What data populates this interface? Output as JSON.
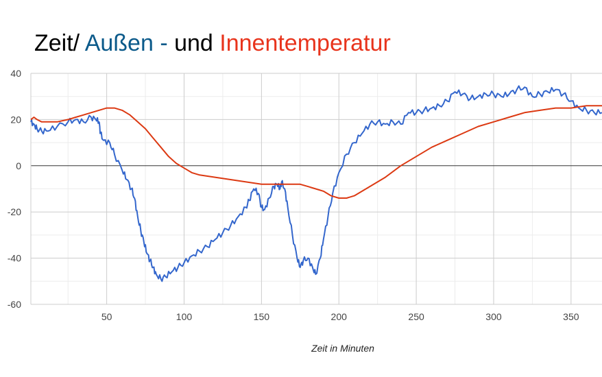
{
  "chart_data": {
    "type": "line",
    "title_parts": [
      {
        "text": "Zeit/ ",
        "color": "#000000"
      },
      {
        "text": "Außen - ",
        "color": "#0b5a8a"
      },
      {
        "text": "und ",
        "color": "#000000"
      },
      {
        "text": "Innentemperatur",
        "color": "#e8341c"
      }
    ],
    "xlabel": "Zeit in Minuten",
    "ylabel": "",
    "xlim": [
      1,
      370
    ],
    "ylim": [
      -60,
      40
    ],
    "x_ticks": [
      50,
      100,
      150,
      200,
      250,
      300,
      350
    ],
    "y_ticks": [
      -60,
      -40,
      -20,
      0,
      20,
      40
    ],
    "grid": true,
    "series": [
      {
        "color": "#3366cc",
        "x": [
          1,
          3,
          5,
          8,
          12,
          18,
          25,
          30,
          35,
          40,
          43,
          45,
          46,
          48,
          52,
          55,
          60,
          63,
          66,
          68,
          70,
          72,
          74,
          76,
          78,
          80,
          82,
          85,
          88,
          92,
          96,
          100,
          105,
          110,
          115,
          120,
          125,
          130,
          135,
          140,
          142,
          145,
          148,
          150,
          152,
          155,
          158,
          160,
          162,
          163,
          165,
          167,
          170,
          173,
          175,
          177,
          180,
          183,
          185,
          188,
          190,
          193,
          196,
          200,
          205,
          210,
          215,
          220,
          225,
          230,
          235,
          240,
          245,
          250,
          255,
          260,
          265,
          270,
          275,
          280,
          285,
          290,
          295,
          300,
          305,
          310,
          315,
          320,
          325,
          330,
          335,
          340,
          345,
          350,
          355,
          360,
          365,
          370
        ],
        "y": [
          19,
          18,
          16,
          15,
          15,
          17,
          19,
          20,
          19,
          21,
          20,
          19,
          14,
          11,
          10,
          5,
          -2,
          -6,
          -10,
          -14,
          -22,
          -28,
          -33,
          -38,
          -41,
          -44,
          -47,
          -49,
          -48,
          -46,
          -44,
          -42,
          -39,
          -37,
          -35,
          -32,
          -29,
          -26,
          -22,
          -18,
          -15,
          -10,
          -12,
          -18,
          -19,
          -14,
          -9,
          -8,
          -10,
          -7,
          -10,
          -18,
          -30,
          -40,
          -44,
          -41,
          -40,
          -44,
          -47,
          -40,
          -32,
          -22,
          -12,
          -3,
          5,
          10,
          14,
          18,
          19,
          18,
          19,
          18,
          23,
          23,
          24,
          25,
          26,
          28,
          32,
          31,
          29,
          30,
          31,
          31,
          30,
          31,
          33,
          34,
          30,
          31,
          32,
          33,
          31,
          28,
          25,
          24,
          23,
          23
        ]
      },
      {
        "color": "#dc3912",
        "x": [
          1,
          3,
          5,
          8,
          12,
          18,
          25,
          30,
          35,
          40,
          45,
          50,
          55,
          60,
          65,
          70,
          75,
          80,
          85,
          90,
          95,
          100,
          105,
          110,
          120,
          130,
          140,
          150,
          155,
          160,
          165,
          170,
          175,
          180,
          185,
          190,
          195,
          200,
          205,
          210,
          215,
          220,
          230,
          240,
          250,
          260,
          270,
          280,
          290,
          300,
          310,
          320,
          330,
          340,
          350,
          360,
          365,
          370
        ],
        "y": [
          20,
          21,
          20,
          19,
          19,
          19,
          20,
          21,
          22,
          23,
          24,
          25,
          25,
          24,
          22,
          19,
          16,
          12,
          8,
          4,
          1,
          -1,
          -3,
          -4,
          -5,
          -6,
          -7,
          -8,
          -8,
          -8,
          -8,
          -8,
          -8,
          -9,
          -10,
          -11,
          -13,
          -14,
          -14,
          -13,
          -11,
          -9,
          -5,
          0,
          4,
          8,
          11,
          14,
          17,
          19,
          21,
          23,
          24,
          25,
          25,
          26,
          26,
          26
        ]
      }
    ]
  }
}
